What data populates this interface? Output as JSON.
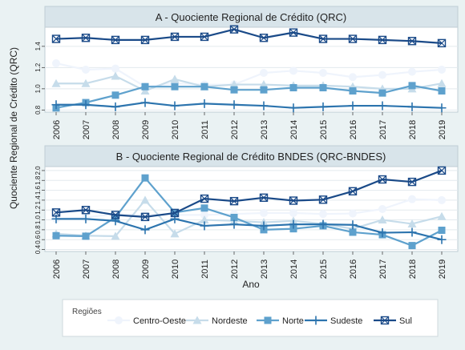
{
  "chart_data": [
    {
      "type": "line",
      "title": "A - Quociente Regional de Crédito (QRC)",
      "xlabel": "",
      "ylabel": "Quociente Regional de Crédito (QRC)",
      "x": [
        "2006",
        "2007",
        "2008",
        "2009",
        "2010",
        "2011",
        "2012",
        "2013",
        "2014",
        "2015",
        "2016",
        "2017",
        "2018",
        "2019"
      ],
      "ylim": [
        0.78,
        1.58
      ],
      "yticks": [
        "0.8",
        "1.0",
        "1.2",
        "1.4"
      ],
      "series": [
        {
          "name": "Centro-Oeste",
          "color": "#eff4fc",
          "marker": "circle",
          "values": [
            1.24,
            1.18,
            1.19,
            1.02,
            1.05,
            1.04,
            1.04,
            1.15,
            1.17,
            1.15,
            1.11,
            1.13,
            1.16,
            1.18
          ]
        },
        {
          "name": "Nordeste",
          "color": "#c6dcea",
          "marker": "triangle",
          "values": [
            1.05,
            1.05,
            1.12,
            0.98,
            1.09,
            1.02,
            1.04,
            1.04,
            1.03,
            1.03,
            1.02,
            1.0,
            1.0,
            1.05
          ]
        },
        {
          "name": "Norte",
          "color": "#5ea1cd",
          "marker": "square",
          "values": [
            0.82,
            0.87,
            0.94,
            1.02,
            1.02,
            1.02,
            0.99,
            0.99,
            1.01,
            1.01,
            0.98,
            0.96,
            1.03,
            0.98
          ]
        },
        {
          "name": "Sudeste",
          "color": "#2c74ae",
          "marker": "plus",
          "values": [
            0.85,
            0.85,
            0.83,
            0.87,
            0.84,
            0.86,
            0.85,
            0.84,
            0.82,
            0.83,
            0.84,
            0.84,
            0.83,
            0.82
          ]
        },
        {
          "name": "Sul",
          "color": "#1a4a88",
          "marker": "xsquare",
          "values": [
            1.47,
            1.48,
            1.46,
            1.46,
            1.49,
            1.49,
            1.56,
            1.48,
            1.53,
            1.47,
            1.47,
            1.46,
            1.45,
            1.43
          ]
        }
      ],
      "grid": true
    },
    {
      "type": "line",
      "title": "B - Quociente Regional de Crédito BNDES (QRC-BNDES)",
      "xlabel": "Ano",
      "ylabel": "",
      "x": [
        "2006",
        "2007",
        "2008",
        "2009",
        "2010",
        "2011",
        "2012",
        "2013",
        "2014",
        "2015",
        "2016",
        "2017",
        "2018",
        "2019"
      ],
      "ylim": [
        0.36,
        2.08
      ],
      "yticks": [
        "0.4",
        "0.6",
        "0.8",
        "1.0",
        "1.2",
        "1.4",
        "1.6",
        "1.8",
        "2.0"
      ],
      "series": [
        {
          "name": "Centro-Oeste",
          "color": "#eff4fc",
          "marker": "circle",
          "values": [
            1.02,
            1.05,
            1.12,
            1.1,
            1.1,
            1.1,
            1.12,
            1.14,
            1.14,
            1.12,
            1.13,
            1.22,
            1.42,
            1.4
          ]
        },
        {
          "name": "Nordeste",
          "color": "#c6dcea",
          "marker": "triangle",
          "values": [
            0.72,
            0.68,
            0.67,
            1.4,
            0.72,
            1.0,
            0.98,
            0.95,
            0.98,
            0.92,
            0.82,
            1.0,
            0.92,
            1.07
          ]
        },
        {
          "name": "Norte",
          "color": "#5ea1cd",
          "marker": "square",
          "values": [
            0.68,
            0.67,
            1.05,
            1.85,
            1.15,
            1.24,
            1.05,
            0.8,
            0.82,
            0.88,
            0.75,
            0.7,
            0.48,
            0.79
          ]
        },
        {
          "name": "Sudeste",
          "color": "#2c74ae",
          "marker": "plus",
          "values": [
            1.02,
            1.02,
            0.98,
            0.8,
            1.02,
            0.88,
            0.91,
            0.88,
            0.91,
            0.91,
            0.9,
            0.74,
            0.75,
            0.6
          ]
        },
        {
          "name": "Sul",
          "color": "#1a4a88",
          "marker": "xsquare",
          "values": [
            1.15,
            1.2,
            1.1,
            1.06,
            1.14,
            1.43,
            1.38,
            1.45,
            1.39,
            1.41,
            1.58,
            1.82,
            1.77,
            2.0
          ]
        }
      ],
      "grid": true
    }
  ],
  "legend": {
    "title": "Regiões",
    "placement": "bottom",
    "items": [
      "Centro-Oeste",
      "Nordeste",
      "Norte",
      "Sudeste",
      "Sul"
    ]
  }
}
